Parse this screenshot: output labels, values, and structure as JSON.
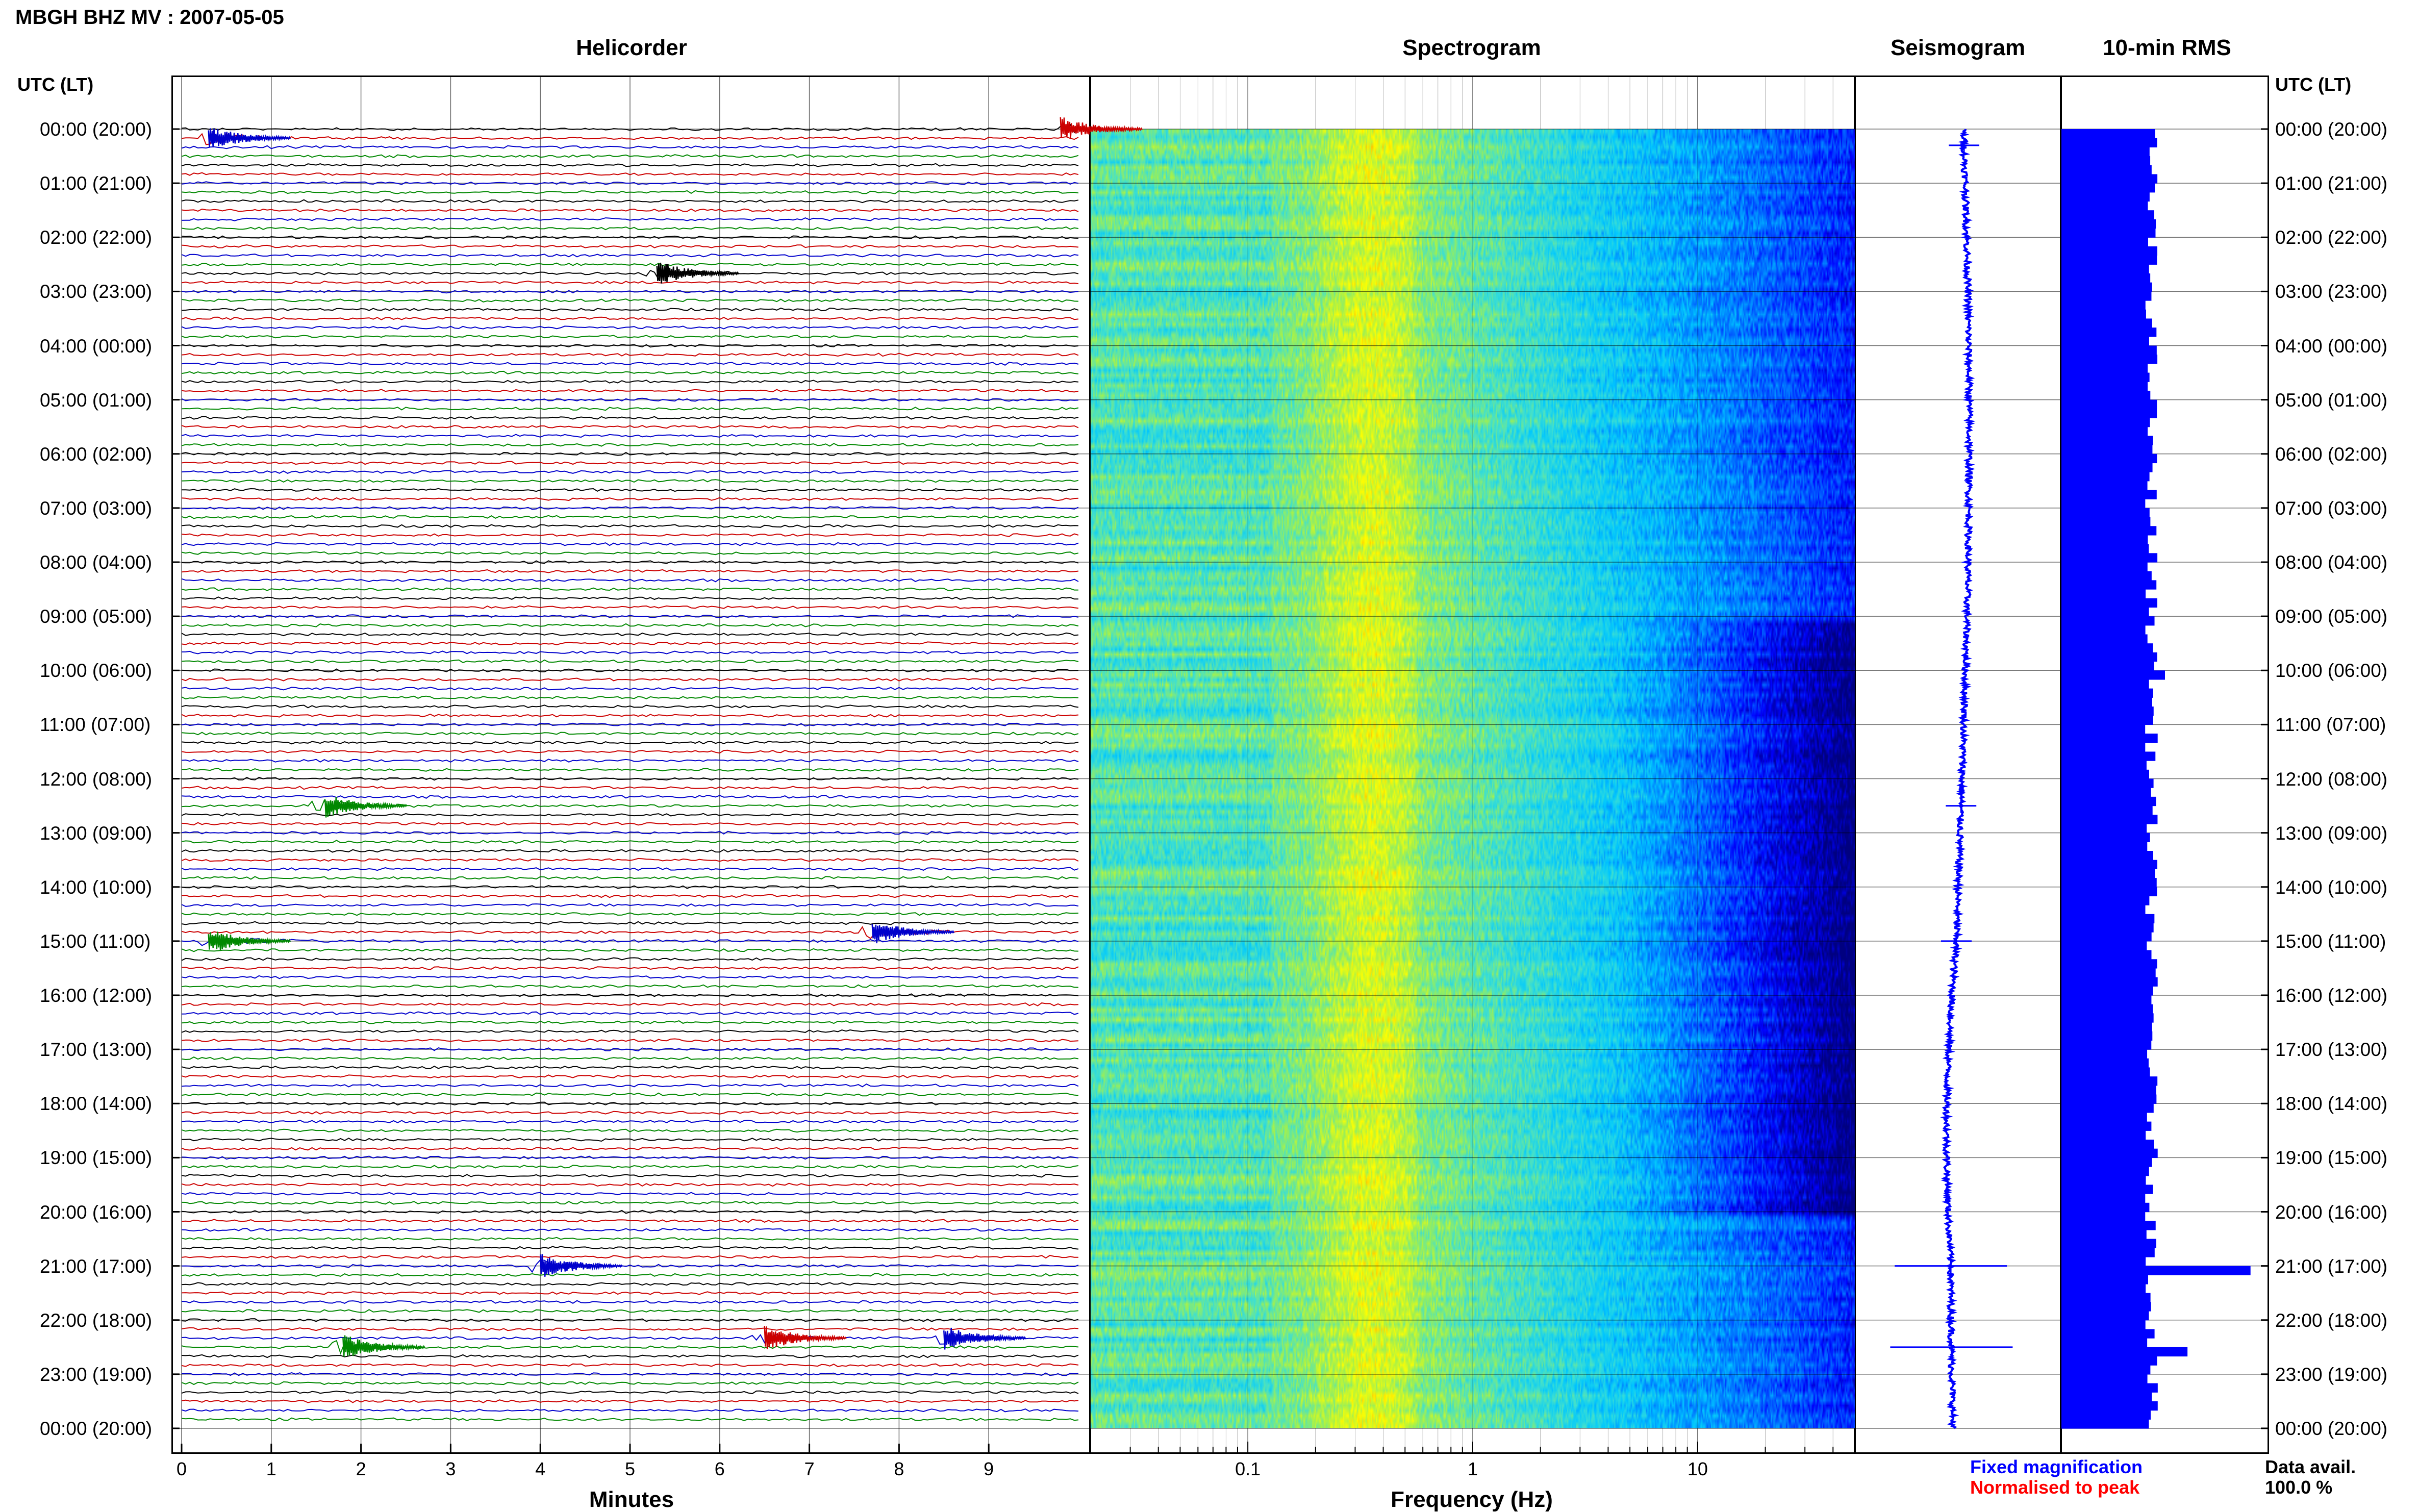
{
  "title": "MBGH BHZ MV : 2007-05-05",
  "headers": {
    "helicorder": "Helicorder",
    "spectrogram": "Spectrogram",
    "seismogram": "Seismogram",
    "rms": "10-min RMS"
  },
  "time_axis_label": "UTC (LT)",
  "time_labels": [
    "00:00 (20:00)",
    "01:00 (21:00)",
    "02:00 (22:00)",
    "03:00 (23:00)",
    "04:00 (00:00)",
    "05:00 (01:00)",
    "06:00 (02:00)",
    "07:00 (03:00)",
    "08:00 (04:00)",
    "09:00 (05:00)",
    "10:00 (06:00)",
    "11:00 (07:00)",
    "12:00 (08:00)",
    "13:00 (09:00)",
    "14:00 (10:00)",
    "15:00 (11:00)",
    "16:00 (12:00)",
    "17:00 (13:00)",
    "18:00 (14:00)",
    "19:00 (15:00)",
    "20:00 (16:00)",
    "21:00 (17:00)",
    "22:00 (18:00)",
    "23:00 (19:00)",
    "00:00 (20:00)"
  ],
  "x_labels": {
    "minutes": "Minutes",
    "frequency": "Frequency (Hz)"
  },
  "minute_ticks": [
    "0",
    "1",
    "2",
    "3",
    "4",
    "5",
    "6",
    "7",
    "8",
    "9"
  ],
  "freq_ticks": [
    "0.1",
    "1",
    "10"
  ],
  "legend": {
    "fixed": "Fixed magnification",
    "normalised": "Normalised to peak",
    "fixed_color": "#0000ff",
    "normalised_color": "#ff0000"
  },
  "availability": {
    "label": "Data avail.",
    "value": "100.0 %"
  },
  "colors": {
    "helicorder_traces": [
      "#000000",
      "#cc0000",
      "#0000cc",
      "#008800"
    ],
    "spectrogram_palette": [
      "#000080",
      "#0000ff",
      "#00a0ff",
      "#40e0d0",
      "#c0f040",
      "#ffff00",
      "#ff8000",
      "#ff0000"
    ],
    "seismogram": "#0000ff",
    "rms": "#0000ff"
  },
  "chart_data": [
    {
      "type": "line",
      "title": "Helicorder",
      "xlabel": "Minutes",
      "xlim": [
        0,
        10
      ],
      "rows": 144,
      "minutes_per_row": 10,
      "events": [
        {
          "time_utc": "00:10",
          "minute": 0.3,
          "color": "blue"
        },
        {
          "time_utc": "00:00",
          "minute": 9.8,
          "color": "red"
        },
        {
          "time_utc": "02:40",
          "minute": 5.3,
          "color": "black"
        },
        {
          "time_utc": "12:30",
          "minute": 1.6,
          "color": "green"
        },
        {
          "time_utc": "15:00",
          "minute": 0.3,
          "color": "green"
        },
        {
          "time_utc": "14:50",
          "minute": 7.7,
          "color": "blue"
        },
        {
          "time_utc": "21:00",
          "minute": 4.0,
          "color": "blue"
        },
        {
          "time_utc": "22:20",
          "minute": 6.5,
          "color": "red"
        },
        {
          "time_utc": "22:30",
          "minute": 1.8,
          "color": "green"
        },
        {
          "time_utc": "22:20",
          "minute": 8.5,
          "color": "blue"
        }
      ]
    },
    {
      "type": "heatmap",
      "title": "Spectrogram",
      "xlabel": "Frequency (Hz)",
      "x_scale": "log",
      "xlim": [
        0.02,
        50
      ],
      "ylim_hours_utc": [
        0,
        24
      ]
    },
    {
      "type": "line",
      "title": "Seismogram",
      "ylim_hours_utc": [
        0,
        24
      ],
      "spikes_utc_hours": [
        0.3,
        12.5,
        15.0,
        21.0,
        22.5
      ]
    },
    {
      "type": "bar",
      "title": "10-min RMS",
      "orientation": "horizontal",
      "ylim_hours_utc": [
        0,
        24
      ],
      "typical_value": 1.0,
      "peaks": [
        {
          "time_utc": "21:00",
          "value": 2.1
        },
        {
          "time_utc": "22:30",
          "value": 1.4
        },
        {
          "time_utc": "10:00",
          "value": 1.15
        }
      ]
    }
  ]
}
